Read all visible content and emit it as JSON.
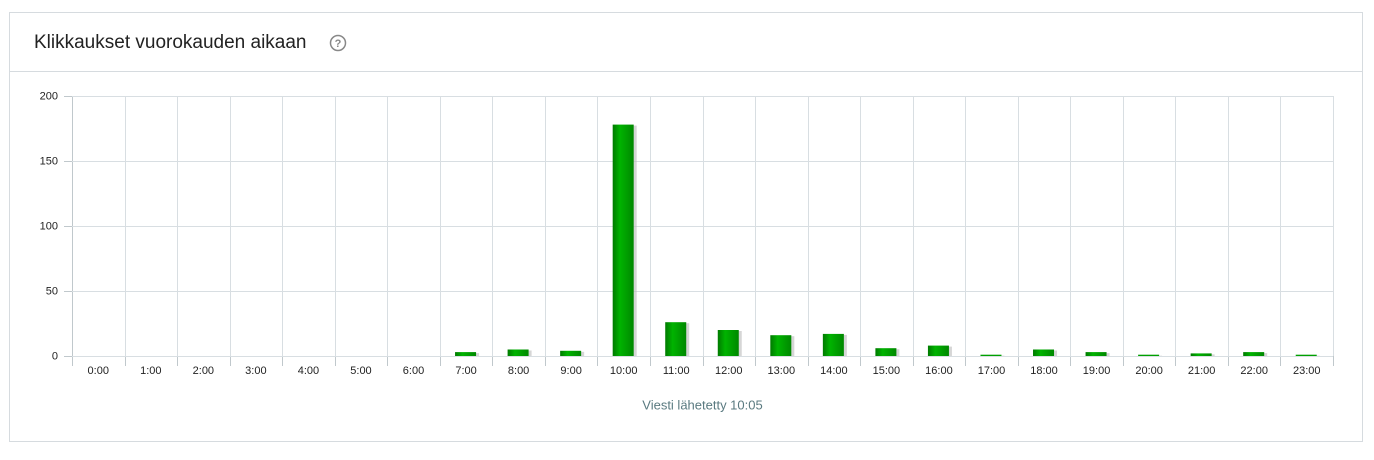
{
  "chart_data": {
    "type": "bar",
    "title": "Klikkaukset vuorokauden aikaan",
    "help_icon": "?",
    "categories": [
      "0:00",
      "1:00",
      "2:00",
      "3:00",
      "4:00",
      "5:00",
      "6:00",
      "7:00",
      "8:00",
      "9:00",
      "10:00",
      "11:00",
      "12:00",
      "13:00",
      "14:00",
      "15:00",
      "16:00",
      "17:00",
      "18:00",
      "19:00",
      "20:00",
      "21:00",
      "22:00",
      "23:00"
    ],
    "values": [
      0,
      0,
      0,
      0,
      0,
      0,
      0,
      3,
      5,
      4,
      178,
      26,
      20,
      16,
      17,
      6,
      8,
      1,
      5,
      3,
      1,
      2,
      3,
      1
    ],
    "color": "#00a000",
    "ylim": [
      0,
      200
    ],
    "yticks": [
      0,
      50,
      100,
      150,
      200
    ],
    "grid": true,
    "xlabel": "Viesti lähetetty 10:05"
  }
}
